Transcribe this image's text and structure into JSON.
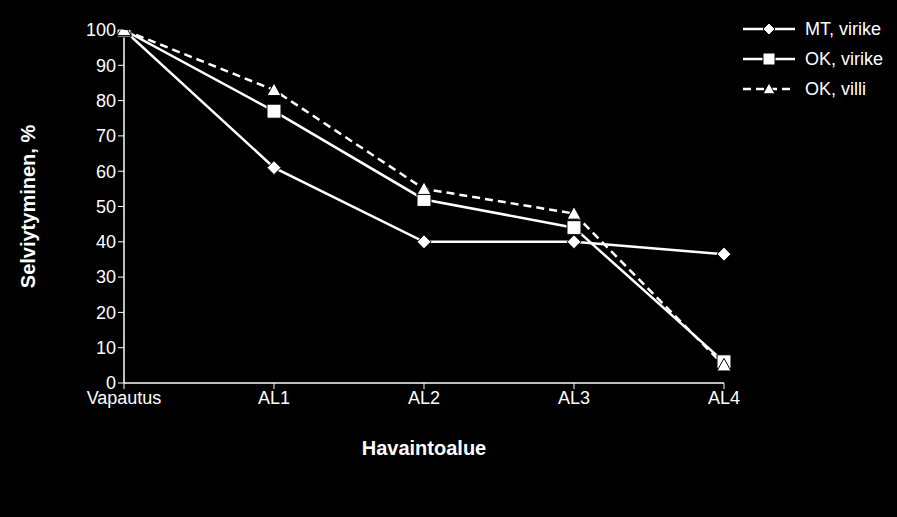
{
  "chart_data": {
    "type": "line",
    "x_label": "Havaintoalue",
    "y_label": "Selviytyminen, %",
    "categories": [
      "Vapautus",
      "AL1",
      "AL2",
      "AL3",
      "AL4"
    ],
    "series": [
      {
        "name": "MT, virike",
        "color": "#ffffff",
        "marker": "diamond",
        "line_style": "solid",
        "values": [
          100,
          61,
          40,
          40,
          36.5
        ]
      },
      {
        "name": "OK, virike",
        "color": "#ffffff",
        "marker": "square",
        "line_style": "solid",
        "values": [
          100,
          77,
          52,
          44,
          6
        ]
      },
      {
        "name": "OK, villi",
        "color": "#ffffff",
        "marker": "triangle",
        "line_style": "dashed",
        "values": [
          100,
          83,
          55,
          48,
          5
        ]
      }
    ],
    "ylim": [
      0,
      100
    ],
    "yticks": [
      0,
      10,
      20,
      30,
      40,
      50,
      60,
      70,
      80,
      90,
      100
    ],
    "grid": false,
    "legend": "top-right"
  }
}
